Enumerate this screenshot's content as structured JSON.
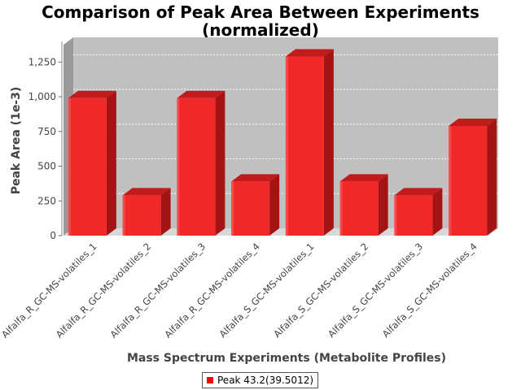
{
  "chart_data": {
    "type": "bar",
    "title_lines": [
      "Comparison of Peak Area Between Experiments",
      "(normalized)"
    ],
    "xlabel": "Mass Spectrum Experiments (Metabolite Profiles)",
    "ylabel": "Peak Area (1e-3)",
    "categories": [
      "Alfalfa_R_GC-MS-volatiles_1",
      "Alfalfa_R_GC-MS-volatiles_2",
      "Alfalfa_R_GC-MS-volatiles_3",
      "Alfalfa_R_GC-MS-volatiles_4",
      "Alfalfa_S_GC-MS-volatiles_1",
      "Alfalfa_S_GC-MS-volatiles_2",
      "Alfalfa_S_GC-MS-volatiles_3",
      "Alfalfa_S_GC-MS-volatiles_4"
    ],
    "series": [
      {
        "name": "Peak 43.2(39.5012)",
        "color": "#ff0000",
        "values": [
          990,
          290,
          990,
          390,
          1290,
          390,
          290,
          790
        ]
      }
    ],
    "ylim": [
      0,
      1375
    ],
    "yticks": [
      0,
      250,
      500,
      750,
      1000,
      1250
    ],
    "ytick_labels": [
      "0",
      "250",
      "500",
      "750",
      "1,000",
      "1,250"
    ],
    "grid": true,
    "legend_position": "bottom",
    "plot_background": "#c0c0c0"
  }
}
